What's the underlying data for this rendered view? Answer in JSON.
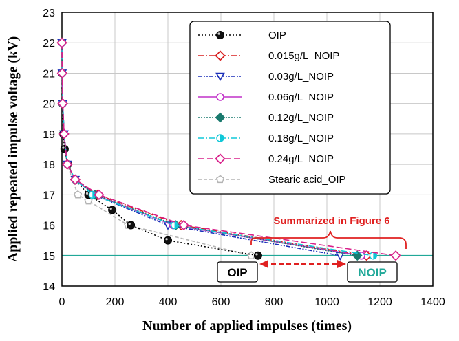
{
  "chart_data": {
    "type": "line",
    "xlabel": "Number of applied impulses (times)",
    "ylabel": "Applied repeated impulse voltage (kV)",
    "xlim": [
      0,
      1400
    ],
    "ylim": [
      14,
      23
    ],
    "xticks": [
      0,
      200,
      400,
      600,
      800,
      1000,
      1200,
      1400
    ],
    "yticks": [
      14,
      15,
      16,
      17,
      18,
      19,
      20,
      21,
      22,
      23
    ],
    "grid": true,
    "legend_position": "top-right",
    "reference_line": {
      "y": 15,
      "color": "#20a898"
    },
    "series": [
      {
        "name": "OIP",
        "color": "#000000",
        "dash": "2,3",
        "marker": "sphere-black",
        "x": [
          0,
          2,
          5,
          10,
          22,
          50,
          100,
          190,
          260,
          400,
          740
        ],
        "y": [
          21,
          20,
          19,
          18.5,
          18,
          17.5,
          17,
          16.5,
          16,
          15.5,
          15
        ]
      },
      {
        "name": "0.015g/L_NOIP",
        "color": "#d81e1e",
        "dash": "8,3,2,3",
        "marker": "diamond-open",
        "x": [
          0,
          1,
          3,
          8,
          20,
          50,
          135,
          450,
          1150
        ],
        "y": [
          22,
          21,
          20,
          19,
          18,
          17.5,
          17,
          16,
          15
        ]
      },
      {
        "name": "0.03g/L_NOIP",
        "color": "#1a2fb8",
        "dash": "6,2,2,2,2,2",
        "marker": "triangle-down-open",
        "x": [
          0,
          1,
          3,
          8,
          20,
          50,
          120,
          400,
          1050
        ],
        "y": [
          22,
          21,
          20,
          19,
          18,
          17.5,
          17,
          16,
          15
        ]
      },
      {
        "name": "0.06g/L_NOIP",
        "color": "#c030c8",
        "dash": "",
        "marker": "circle-open",
        "x": [
          0,
          1,
          3,
          8,
          20,
          50,
          125,
          420,
          1130
        ],
        "y": [
          22,
          21,
          20,
          19,
          18,
          17.5,
          17,
          16,
          15
        ]
      },
      {
        "name": "0.12g/L_NOIP",
        "color": "#1a7a6e",
        "dash": "2,2",
        "marker": "diamond-filled",
        "x": [
          0,
          1,
          3,
          8,
          20,
          50,
          125,
          430,
          1115
        ],
        "y": [
          22,
          21,
          20,
          19,
          18,
          17.5,
          17,
          16,
          15
        ]
      },
      {
        "name": "0.18g/L_NOIP",
        "color": "#10c8d8",
        "dash": "8,3,2,3",
        "marker": "circle-half",
        "x": [
          0,
          1,
          3,
          8,
          20,
          50,
          115,
          425,
          1175
        ],
        "y": [
          22,
          21,
          20,
          19,
          18,
          17.5,
          17,
          16,
          15
        ]
      },
      {
        "name": "0.24g/L_NOIP",
        "color": "#d8208a",
        "dash": "9,4",
        "marker": "diamond-open",
        "x": [
          0,
          1,
          3,
          8,
          20,
          50,
          140,
          460,
          1260
        ],
        "y": [
          22,
          21,
          20,
          19,
          18,
          17.5,
          17,
          16,
          15
        ]
      },
      {
        "name": "Stearic acid_OIP",
        "color": "#b4b4b4",
        "dash": "5,3",
        "marker": "pentagon-open",
        "x": [
          0,
          2,
          5,
          10,
          20,
          60,
          100,
          250,
          715
        ],
        "y": [
          21,
          20,
          19,
          18.5,
          18,
          17,
          16.8,
          16,
          15
        ]
      }
    ],
    "annotations": {
      "summarized": "Summarized in Figure 6",
      "oip_box": "OIP",
      "noip_box": "NOIP"
    }
  }
}
